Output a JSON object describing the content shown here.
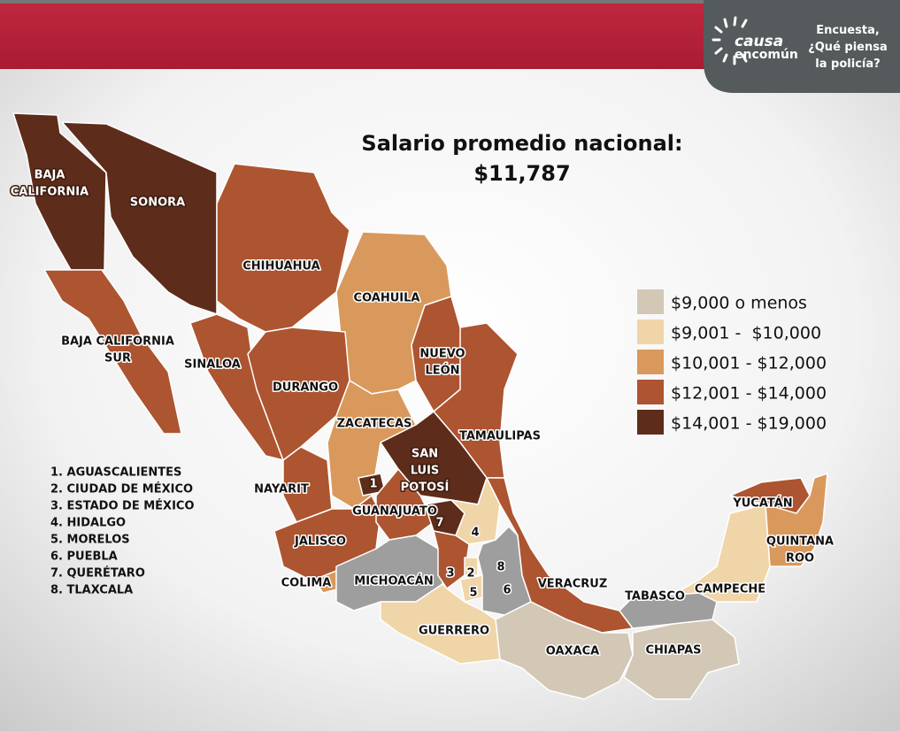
{
  "header": {
    "logo": [
      "causa",
      "encomún"
    ],
    "tagline": [
      "Encuesta,",
      "¿Qué piensa",
      "la policía?"
    ]
  },
  "title": "Salario promedio nacional:",
  "average": "$11,787",
  "legend": [
    {
      "label": "$9,000 o menos",
      "color": "#d3c7b6"
    },
    {
      "label": "$9,001 -  $10,000",
      "color": "#f0d5a8"
    },
    {
      "label": "$10,001 - $12,000",
      "color": "#d9995c"
    },
    {
      "label": "$12,001 - $14,000",
      "color": "#ad5430"
    },
    {
      "label": "$14,001 - $19,000",
      "color": "#5e2c1a"
    }
  ],
  "nodata_color": "#9e9e9e",
  "states": [
    {
      "label": [
        "BAJA",
        "CALIFORNIA"
      ],
      "range": 4
    },
    {
      "label": [
        "SONORA"
      ],
      "range": 4
    },
    {
      "label": [
        "BAJA CALIFORNIA",
        "SUR"
      ],
      "range": 3
    },
    {
      "label": [
        "CHIHUAHUA"
      ],
      "range": 3
    },
    {
      "label": [
        "COAHUILA"
      ],
      "range": 2
    },
    {
      "label": [
        "NUEVO",
        "LEÓN"
      ],
      "range": 3
    },
    {
      "label": [
        "TAMAULIPAS"
      ],
      "range": 3
    },
    {
      "label": [
        "SINALOA"
      ],
      "range": 3
    },
    {
      "label": [
        "DURANGO"
      ],
      "range": 3
    },
    {
      "label": [
        "ZACATECAS"
      ],
      "range": 2
    },
    {
      "label": [
        "SAN",
        "LUIS",
        "POTOSÍ"
      ],
      "range": 4
    },
    {
      "label": [
        "NAYARIT"
      ],
      "range": 3
    },
    {
      "label": [
        "JALISCO"
      ],
      "range": 3
    },
    {
      "label": [
        "1"
      ],
      "range": 4
    },
    {
      "label": [
        "GUANAJUATO"
      ],
      "range": 3
    },
    {
      "label": [
        "7"
      ],
      "range": 4
    },
    {
      "label": [
        "4"
      ],
      "range": 1
    },
    {
      "label": [
        "COLIMA"
      ],
      "range": 2
    },
    {
      "label": [
        "MICHOACÁN"
      ],
      "range": null
    },
    {
      "label": [
        "3"
      ],
      "range": 3
    },
    {
      "label": [
        "2"
      ],
      "range": 1
    },
    {
      "label": [
        "5"
      ],
      "range": 1
    },
    {
      "label": [
        "8"
      ],
      "range": null
    },
    {
      "label": [
        "6"
      ],
      "range": null
    },
    {
      "label": [
        "VERACRUZ"
      ],
      "range": 3
    },
    {
      "label": [
        "GUERRERO"
      ],
      "range": 1
    },
    {
      "label": [
        "OAXACA"
      ],
      "range": 0
    },
    {
      "label": [
        "CHIAPAS"
      ],
      "range": 0
    },
    {
      "label": [
        "TABASCO"
      ],
      "range": null
    },
    {
      "label": [
        "CAMPECHE"
      ],
      "range": 1
    },
    {
      "label": [
        "YUCATÁN"
      ],
      "range": 3
    },
    {
      "label": [
        "QUINTANA",
        "ROO"
      ],
      "range": 2
    }
  ],
  "numbered_list": [
    "1. AGUASCALIENTES",
    "2. CIUDAD DE MÉXICO",
    "3. ESTADO DE MÉXICO",
    "4. HIDALGO",
    "5. MORELOS",
    "6. PUEBLA",
    "7. QUERÉTARO",
    "8. TLAXCALA"
  ]
}
